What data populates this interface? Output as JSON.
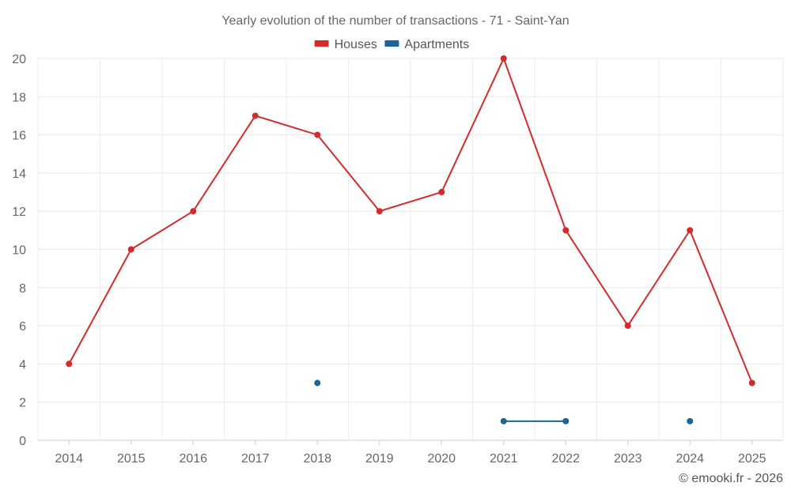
{
  "chart_data": {
    "type": "line",
    "title": "Yearly evolution of the number of transactions - 71 - Saint-Yan",
    "categories": [
      "2014",
      "2015",
      "2016",
      "2017",
      "2018",
      "2019",
      "2020",
      "2021",
      "2022",
      "2023",
      "2024",
      "2025"
    ],
    "series": [
      {
        "name": "Houses",
        "color": "#d42a2a",
        "values": [
          4,
          10,
          12,
          17,
          16,
          12,
          13,
          20,
          11,
          6,
          11,
          3
        ]
      },
      {
        "name": "Apartments",
        "color": "#1a6598",
        "values": [
          null,
          null,
          null,
          null,
          3,
          null,
          null,
          1,
          1,
          null,
          1,
          null
        ]
      }
    ],
    "ylim": [
      0,
      20
    ],
    "yticks": [
      0,
      2,
      4,
      6,
      8,
      10,
      12,
      14,
      16,
      18,
      20
    ],
    "grid": true,
    "legend": "top-center",
    "xlabel": "",
    "ylabel": ""
  },
  "credit": "© emooki.fr - 2026"
}
